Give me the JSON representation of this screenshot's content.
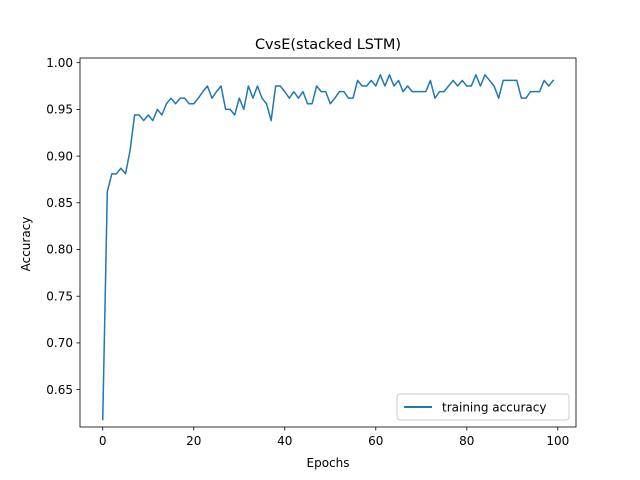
{
  "chart_data": {
    "type": "line",
    "title": "CvsE(stacked LSTM)",
    "xlabel": "Epochs",
    "ylabel": "Accuracy",
    "xlim": [
      -5,
      104
    ],
    "ylim": [
      0.61,
      1.005
    ],
    "xticks": [
      0,
      20,
      40,
      60,
      80,
      100
    ],
    "yticks": [
      0.65,
      0.7,
      0.75,
      0.8,
      0.85,
      0.9,
      0.95,
      1.0
    ],
    "ytick_labels": [
      "0.65",
      "0.70",
      "0.75",
      "0.80",
      "0.85",
      "0.90",
      "0.95",
      "1.00"
    ],
    "grid": false,
    "legend_position": "lower right",
    "colors": {
      "line": "#1f77b4"
    },
    "series": [
      {
        "name": "training accuracy",
        "x": [
          0,
          1,
          2,
          3,
          4,
          5,
          6,
          7,
          8,
          9,
          10,
          11,
          12,
          13,
          14,
          15,
          16,
          17,
          18,
          19,
          20,
          21,
          22,
          23,
          24,
          25,
          26,
          27,
          28,
          29,
          30,
          31,
          32,
          33,
          34,
          35,
          36,
          37,
          38,
          39,
          40,
          41,
          42,
          43,
          44,
          45,
          46,
          47,
          48,
          49,
          50,
          51,
          52,
          53,
          54,
          55,
          56,
          57,
          58,
          59,
          60,
          61,
          62,
          63,
          64,
          65,
          66,
          67,
          68,
          69,
          70,
          71,
          72,
          73,
          74,
          75,
          76,
          77,
          78,
          79,
          80,
          81,
          82,
          83,
          84,
          85,
          86,
          87,
          88,
          89,
          90,
          91,
          92,
          93,
          94,
          95,
          96,
          97,
          98,
          99
        ],
        "values": [
          0.618,
          0.862,
          0.881,
          0.881,
          0.887,
          0.881,
          0.906,
          0.944,
          0.944,
          0.938,
          0.944,
          0.938,
          0.95,
          0.944,
          0.956,
          0.962,
          0.956,
          0.962,
          0.962,
          0.956,
          0.956,
          0.962,
          0.969,
          0.975,
          0.962,
          0.969,
          0.975,
          0.95,
          0.95,
          0.944,
          0.962,
          0.95,
          0.975,
          0.962,
          0.975,
          0.962,
          0.956,
          0.938,
          0.975,
          0.975,
          0.969,
          0.962,
          0.969,
          0.962,
          0.969,
          0.956,
          0.956,
          0.975,
          0.969,
          0.969,
          0.956,
          0.962,
          0.969,
          0.969,
          0.962,
          0.962,
          0.981,
          0.975,
          0.975,
          0.981,
          0.975,
          0.987,
          0.975,
          0.987,
          0.975,
          0.981,
          0.969,
          0.975,
          0.969,
          0.969,
          0.969,
          0.969,
          0.981,
          0.962,
          0.969,
          0.969,
          0.975,
          0.981,
          0.975,
          0.981,
          0.975,
          0.975,
          0.987,
          0.975,
          0.987,
          0.981,
          0.975,
          0.962,
          0.981,
          0.981,
          0.981,
          0.981,
          0.962,
          0.962,
          0.969,
          0.969,
          0.969,
          0.981,
          0.975,
          0.981
        ]
      }
    ]
  }
}
